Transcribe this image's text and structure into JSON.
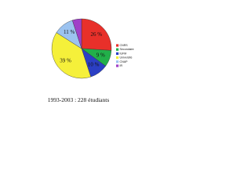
{
  "chart_data": {
    "type": "pie",
    "title": "1993-2003 : 228 étudiants",
    "categories": [
      "CNRS",
      "Secondaire",
      "IUFM",
      "Université",
      "CNAP",
      "IR"
    ],
    "values": [
      26,
      9,
      10,
      39,
      11,
      5
    ],
    "value_labels": [
      "26 %",
      "9 %",
      "10 %",
      "39 %",
      "11 %",
      null
    ],
    "colors": [
      "#e8302a",
      "#22b04a",
      "#2b3fc4",
      "#f5f03a",
      "#9cc3f0",
      "#a040c8"
    ],
    "legend": "right"
  }
}
